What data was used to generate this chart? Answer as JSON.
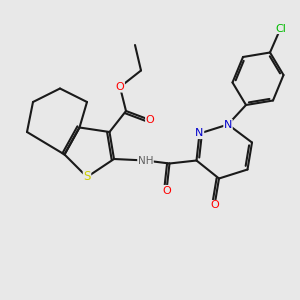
{
  "bg_color": "#e8e8e8",
  "bond_color": "#1a1a1a",
  "bond_width": 1.5,
  "atom_colors": {
    "O": "#ff0000",
    "N": "#0000cc",
    "S": "#cccc00",
    "Cl": "#00bb00",
    "C": "#1a1a1a",
    "H": "#606060"
  },
  "font_size": 8.0,
  "fig_size": [
    3.0,
    3.0
  ],
  "dpi": 100
}
